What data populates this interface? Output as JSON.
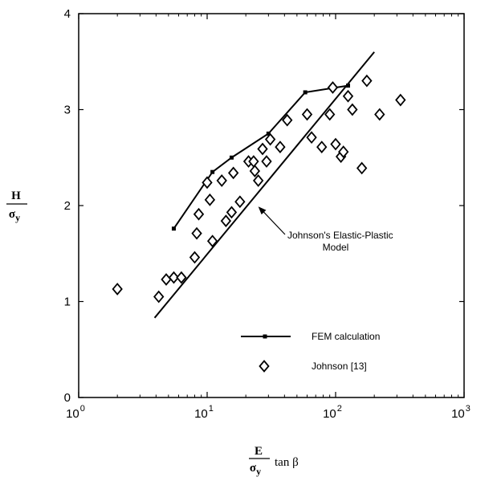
{
  "chart_data": {
    "type": "scatter",
    "x_scale": "log",
    "xlim": [
      1,
      1000
    ],
    "ylim": [
      0,
      4
    ],
    "x_ticks": [
      {
        "value": 1,
        "base": "10",
        "exp": "0"
      },
      {
        "value": 10,
        "base": "10",
        "exp": "1"
      },
      {
        "value": 100,
        "base": "10",
        "exp": "2"
      },
      {
        "value": 1000,
        "base": "10",
        "exp": "3"
      }
    ],
    "y_ticks": [
      {
        "value": 0,
        "label": "0"
      },
      {
        "value": 1,
        "label": "1"
      },
      {
        "value": 2,
        "label": "2"
      },
      {
        "value": 3,
        "label": "3"
      },
      {
        "value": 4,
        "label": "4"
      }
    ],
    "ylabel": {
      "num": "H",
      "den": "σ",
      "den_sub": "y"
    },
    "xlabel": {
      "num": "E",
      "den": "σ",
      "den_sub": "y",
      "suffix": "tan β"
    },
    "grid": false,
    "legend_position": "lower-right",
    "series": [
      {
        "name": "FEM calculation",
        "kind": "line-square",
        "points": [
          {
            "x": 5.5,
            "y": 1.76
          },
          {
            "x": 11,
            "y": 2.35
          },
          {
            "x": 15.5,
            "y": 2.5
          },
          {
            "x": 30,
            "y": 2.75
          },
          {
            "x": 58,
            "y": 3.18
          },
          {
            "x": 125,
            "y": 3.25
          }
        ]
      },
      {
        "name": "Johnson [13]",
        "kind": "diamond",
        "points": [
          {
            "x": 2,
            "y": 1.13
          },
          {
            "x": 4.2,
            "y": 1.05
          },
          {
            "x": 4.8,
            "y": 1.23
          },
          {
            "x": 5.5,
            "y": 1.25
          },
          {
            "x": 6.3,
            "y": 1.25
          },
          {
            "x": 8,
            "y": 1.46
          },
          {
            "x": 8.3,
            "y": 1.71
          },
          {
            "x": 8.6,
            "y": 1.91
          },
          {
            "x": 10,
            "y": 2.24
          },
          {
            "x": 10.5,
            "y": 2.06
          },
          {
            "x": 11,
            "y": 1.63
          },
          {
            "x": 13,
            "y": 2.26
          },
          {
            "x": 14,
            "y": 1.84
          },
          {
            "x": 15.5,
            "y": 1.93
          },
          {
            "x": 16,
            "y": 2.34
          },
          {
            "x": 18,
            "y": 2.04
          },
          {
            "x": 21,
            "y": 2.46
          },
          {
            "x": 23,
            "y": 2.46
          },
          {
            "x": 23.5,
            "y": 2.36
          },
          {
            "x": 25,
            "y": 2.26
          },
          {
            "x": 27,
            "y": 2.59
          },
          {
            "x": 29,
            "y": 2.46
          },
          {
            "x": 31,
            "y": 2.69
          },
          {
            "x": 37,
            "y": 2.61
          },
          {
            "x": 42,
            "y": 2.89
          },
          {
            "x": 60,
            "y": 2.95
          },
          {
            "x": 65,
            "y": 2.71
          },
          {
            "x": 78,
            "y": 2.61
          },
          {
            "x": 90,
            "y": 2.95
          },
          {
            "x": 95,
            "y": 3.23
          },
          {
            "x": 100,
            "y": 2.64
          },
          {
            "x": 110,
            "y": 2.51
          },
          {
            "x": 115,
            "y": 2.56
          },
          {
            "x": 125,
            "y": 3.14
          },
          {
            "x": 135,
            "y": 3.0
          },
          {
            "x": 160,
            "y": 2.39
          },
          {
            "x": 175,
            "y": 3.3
          },
          {
            "x": 220,
            "y": 2.95
          },
          {
            "x": 320,
            "y": 3.1
          }
        ]
      }
    ],
    "model_line": {
      "name": "Johnson's Elastic-Plastic Model",
      "points": [
        {
          "x": 3.9,
          "y": 0.83
        },
        {
          "x": 200,
          "y": 3.6
        }
      ]
    },
    "annotation": {
      "line1": "Johnson's Elastic-Plastic",
      "line2": "Model",
      "arrow_target": {
        "x": 25,
        "y": 1.99
      }
    }
  }
}
